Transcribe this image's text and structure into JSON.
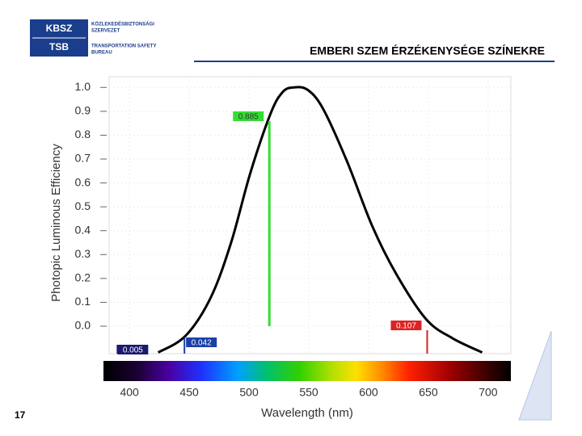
{
  "header": {
    "logo_top": "KBSZ",
    "logo_bottom": "TSB",
    "org_hu": [
      "KÖZLEKEDÉSBIZTONSÁGI",
      "SZERVEZET"
    ],
    "org_en": [
      "TRANSPORTATION SAFETY",
      "BUREAU"
    ],
    "title": "EMBERI SZEM ÉRZÉKENYSÉGE SZÍNEKRE"
  },
  "page_number": "17",
  "chart_data": {
    "type": "line",
    "x_label": "Wavelength (nm)",
    "y_label": "Photopic Luminous Efficiency",
    "x": [
      424,
      447,
      468,
      485,
      501,
      518,
      528,
      537,
      549,
      562,
      582,
      603,
      623,
      648,
      670,
      695
    ],
    "series": [
      {
        "color": "#000000",
        "values": [
          -0.11,
          -0.04,
          0.12,
          0.35,
          0.64,
          0.89,
          0.98,
          1.0,
          0.99,
          0.91,
          0.69,
          0.42,
          0.22,
          0.03,
          -0.05,
          -0.11
        ]
      }
    ],
    "markers": [
      {
        "x": 517,
        "value": 0.885,
        "color": "#33dd33"
      },
      {
        "x": 446,
        "value": 0.042,
        "color": "#1a3fa8"
      },
      {
        "x": 390,
        "value": 0.005,
        "color": "#1a1a6e"
      },
      {
        "x": 649,
        "value": 0.107,
        "color": "#dd2222"
      }
    ],
    "xlim": [
      383,
      719
    ],
    "ylim": [
      -0.115,
      1.045
    ],
    "xticks": [
      400,
      450,
      500,
      550,
      600,
      650,
      700
    ],
    "yticks": [
      {
        "value": 1,
        "label": "1.0"
      },
      0.9,
      0.8,
      0.7,
      0.6,
      0.5,
      0.4,
      0.3,
      0.2,
      0.1,
      {
        "value": 0,
        "label": "0.0"
      }
    ],
    "grid": true
  }
}
